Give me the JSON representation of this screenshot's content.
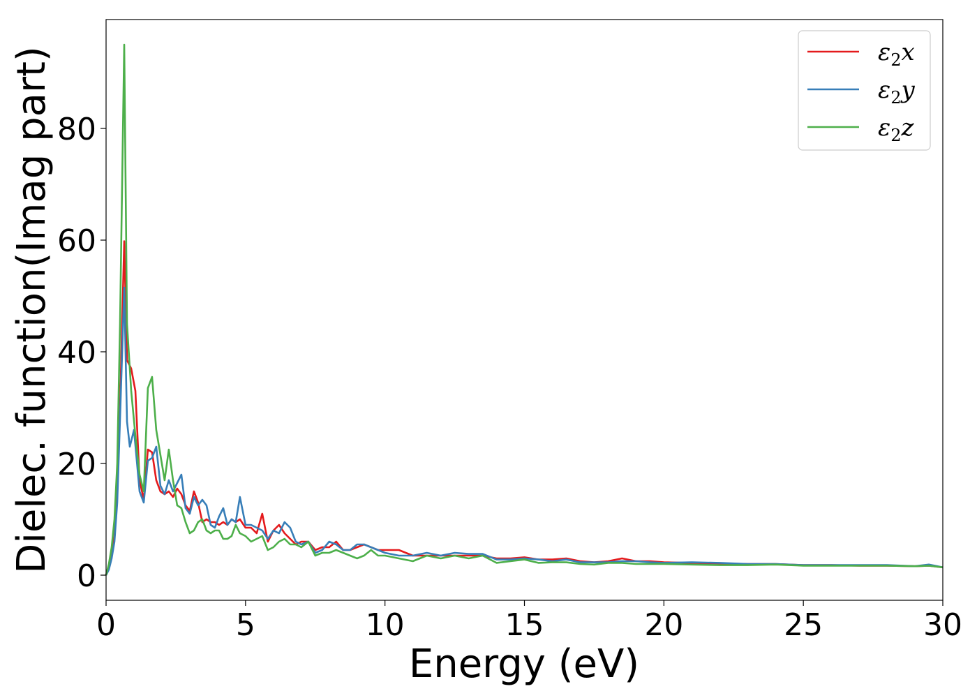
{
  "chart_data": {
    "type": "line",
    "title": "",
    "xlabel": "Energy (eV)",
    "ylabel": "Dielec. function(Imag part)",
    "xlim": [
      0,
      30
    ],
    "ylim": [
      -4.5,
      99.5
    ],
    "xticks": [
      0,
      5,
      10,
      15,
      20,
      25,
      30
    ],
    "yticks": [
      0,
      20,
      40,
      60,
      80
    ],
    "grid": false,
    "legend_position": "top-right",
    "series": [
      {
        "name": "ε2x",
        "legend_symbol": "ε",
        "legend_sub": "2",
        "legend_var": "x",
        "color": "#e41a1c",
        "x": [
          0.0,
          0.1,
          0.2,
          0.3,
          0.4,
          0.5,
          0.65,
          0.75,
          0.9,
          1.05,
          1.2,
          1.35,
          1.5,
          1.65,
          1.8,
          1.95,
          2.1,
          2.25,
          2.4,
          2.55,
          2.7,
          2.85,
          3.0,
          3.15,
          3.3,
          3.45,
          3.6,
          3.75,
          3.9,
          4.05,
          4.2,
          4.35,
          4.5,
          4.65,
          4.8,
          5.0,
          5.2,
          5.4,
          5.6,
          5.8,
          6.0,
          6.2,
          6.4,
          6.6,
          6.8,
          7.0,
          7.25,
          7.5,
          7.75,
          8.0,
          8.25,
          8.5,
          8.75,
          9.0,
          9.25,
          9.5,
          9.75,
          10.0,
          10.5,
          11.0,
          11.5,
          12.0,
          12.5,
          13.0,
          13.5,
          14.0,
          14.5,
          15.0,
          15.5,
          16.0,
          16.5,
          17.0,
          17.5,
          18.0,
          18.5,
          19.0,
          19.5,
          20.0,
          21.0,
          22.0,
          23.0,
          24.0,
          25.0,
          26.0,
          27.0,
          28.0,
          29.0,
          29.5,
          30.0
        ],
        "values": [
          0.0,
          1.5,
          3.5,
          7.0,
          15.0,
          30.0,
          59.8,
          38.5,
          37.0,
          33.0,
          17.0,
          13.5,
          22.5,
          22.0,
          17.0,
          15.0,
          14.5,
          15.0,
          14.0,
          15.5,
          14.5,
          12.5,
          11.5,
          15.0,
          13.0,
          9.5,
          10.0,
          9.5,
          9.5,
          9.0,
          9.5,
          9.0,
          10.0,
          9.5,
          10.0,
          8.5,
          8.5,
          7.5,
          11.0,
          6.0,
          8.0,
          9.0,
          7.5,
          6.5,
          5.5,
          6.0,
          6.0,
          4.5,
          5.0,
          5.0,
          6.0,
          4.5,
          4.5,
          5.0,
          5.5,
          5.0,
          4.5,
          4.5,
          4.5,
          3.5,
          3.5,
          3.5,
          3.5,
          3.5,
          3.5,
          3.0,
          3.0,
          3.2,
          2.8,
          2.8,
          3.0,
          2.5,
          2.3,
          2.5,
          3.0,
          2.5,
          2.5,
          2.3,
          2.2,
          2.1,
          2.0,
          2.0,
          1.8,
          1.8,
          1.7,
          1.7,
          1.6,
          1.7,
          1.4
        ]
      },
      {
        "name": "ε2y",
        "legend_symbol": "ε",
        "legend_sub": "2",
        "legend_var": "y",
        "color": "#377eb8",
        "x": [
          0.0,
          0.1,
          0.2,
          0.3,
          0.4,
          0.5,
          0.65,
          0.75,
          0.85,
          1.0,
          1.2,
          1.35,
          1.5,
          1.65,
          1.8,
          1.95,
          2.1,
          2.25,
          2.4,
          2.55,
          2.7,
          2.85,
          3.0,
          3.15,
          3.3,
          3.45,
          3.6,
          3.75,
          3.9,
          4.05,
          4.2,
          4.35,
          4.5,
          4.65,
          4.8,
          5.0,
          5.2,
          5.4,
          5.6,
          5.8,
          6.0,
          6.2,
          6.4,
          6.6,
          6.8,
          7.0,
          7.25,
          7.5,
          7.75,
          8.0,
          8.25,
          8.5,
          8.75,
          9.0,
          9.25,
          9.5,
          9.75,
          10.0,
          10.5,
          11.0,
          11.5,
          12.0,
          12.5,
          13.0,
          13.5,
          14.0,
          14.5,
          15.0,
          15.5,
          16.0,
          16.5,
          17.0,
          17.5,
          18.0,
          18.5,
          19.0,
          19.5,
          20.0,
          21.0,
          22.0,
          23.0,
          24.0,
          25.0,
          26.0,
          27.0,
          28.0,
          29.0,
          29.5,
          30.0
        ],
        "values": [
          0.0,
          1.0,
          3.0,
          6.0,
          13.0,
          28.0,
          51.5,
          27.5,
          23.0,
          26.0,
          15.0,
          13.0,
          20.5,
          21.0,
          23.0,
          16.0,
          14.5,
          17.0,
          15.0,
          16.5,
          18.0,
          12.0,
          11.0,
          14.0,
          12.5,
          13.5,
          12.5,
          9.0,
          8.5,
          10.5,
          12.0,
          9.0,
          10.0,
          9.5,
          14.0,
          9.0,
          9.0,
          8.5,
          8.0,
          6.5,
          8.0,
          7.5,
          9.5,
          8.5,
          6.0,
          5.5,
          6.0,
          4.0,
          4.5,
          6.0,
          5.5,
          4.5,
          4.5,
          5.5,
          5.5,
          5.0,
          4.5,
          4.0,
          3.5,
          3.5,
          4.0,
          3.5,
          4.0,
          3.8,
          3.8,
          2.8,
          2.8,
          3.0,
          2.8,
          2.5,
          2.8,
          2.3,
          2.3,
          2.3,
          2.5,
          2.5,
          2.3,
          2.2,
          2.3,
          2.2,
          2.0,
          2.0,
          1.8,
          1.8,
          1.8,
          1.8,
          1.6,
          1.9,
          1.4
        ]
      },
      {
        "name": "ε2z",
        "legend_symbol": "ε",
        "legend_sub": "2",
        "legend_var": "z",
        "color": "#4daf4a",
        "x": [
          0.0,
          0.1,
          0.2,
          0.3,
          0.4,
          0.5,
          0.65,
          0.75,
          0.9,
          1.05,
          1.2,
          1.35,
          1.5,
          1.65,
          1.8,
          1.95,
          2.1,
          2.25,
          2.4,
          2.55,
          2.7,
          2.85,
          3.0,
          3.15,
          3.3,
          3.45,
          3.6,
          3.75,
          3.9,
          4.05,
          4.2,
          4.35,
          4.5,
          4.65,
          4.8,
          5.0,
          5.2,
          5.4,
          5.6,
          5.8,
          6.0,
          6.2,
          6.4,
          6.6,
          6.8,
          7.0,
          7.25,
          7.5,
          7.75,
          8.0,
          8.25,
          8.5,
          8.75,
          9.0,
          9.25,
          9.5,
          9.75,
          10.0,
          10.5,
          11.0,
          11.5,
          12.0,
          12.5,
          13.0,
          13.5,
          14.0,
          14.5,
          15.0,
          15.5,
          16.0,
          16.5,
          17.0,
          17.5,
          18.0,
          18.5,
          19.0,
          19.5,
          20.0,
          21.0,
          22.0,
          23.0,
          24.0,
          25.0,
          26.0,
          27.0,
          28.0,
          29.0,
          29.5,
          30.0
        ],
        "values": [
          0.0,
          2.0,
          5.0,
          10.0,
          20.0,
          45.0,
          95.0,
          45.0,
          33.0,
          25.0,
          18.0,
          15.0,
          33.5,
          35.5,
          26.0,
          21.5,
          17.0,
          22.5,
          17.0,
          12.5,
          12.0,
          9.5,
          7.5,
          8.0,
          9.5,
          10.0,
          8.0,
          7.5,
          8.0,
          8.0,
          6.5,
          6.5,
          7.0,
          9.0,
          7.5,
          7.0,
          6.0,
          6.5,
          7.0,
          4.5,
          5.0,
          6.0,
          6.5,
          5.5,
          5.5,
          5.0,
          6.0,
          3.5,
          4.0,
          4.0,
          4.5,
          4.0,
          3.5,
          3.0,
          3.5,
          4.5,
          3.5,
          3.5,
          3.0,
          2.5,
          3.5,
          3.0,
          3.5,
          3.0,
          3.5,
          2.2,
          2.5,
          2.8,
          2.2,
          2.3,
          2.3,
          2.0,
          1.9,
          2.2,
          2.2,
          2.0,
          2.0,
          2.0,
          1.9,
          1.8,
          1.8,
          1.9,
          1.7,
          1.7,
          1.7,
          1.7,
          1.6,
          1.7,
          1.4
        ]
      }
    ]
  }
}
